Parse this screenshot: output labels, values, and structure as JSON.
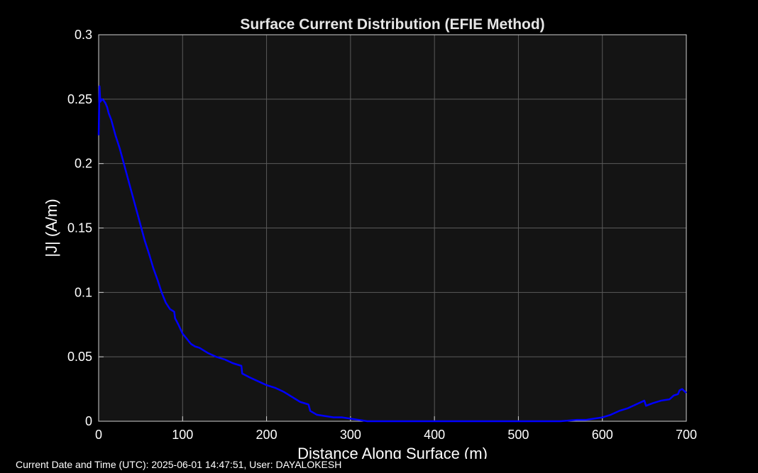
{
  "footer": {
    "text": "Current Date and Time (UTC): 2025-06-01 14:47:51, User: DAYALOKESH"
  },
  "colors": {
    "figure_background": "#000000",
    "axes_background": "#141414",
    "grid": "#5a5a5a",
    "text": "#ffffff",
    "line": "#0000ff"
  },
  "chart_data": {
    "type": "line",
    "title": "Surface Current Distribution (EFIE Method)",
    "xlabel": "Distance Along Surface (m)",
    "ylabel": "|J| (A/m)",
    "xlim": [
      0,
      700
    ],
    "ylim": [
      0,
      0.3
    ],
    "xticks": [
      0,
      100,
      200,
      300,
      400,
      500,
      600,
      700
    ],
    "yticks": [
      0,
      0.05,
      0.1,
      0.15,
      0.2,
      0.25,
      0.3
    ],
    "ytick_labels": [
      "0",
      "0.05",
      "0.1",
      "0.15",
      "0.2",
      "0.25",
      "0.3"
    ],
    "grid": true,
    "series": [
      {
        "color": "#0000ff",
        "x": [
          0,
          1,
          2,
          4,
          6,
          8,
          10,
          12,
          15,
          20,
          25,
          30,
          35,
          40,
          45,
          50,
          55,
          60,
          65,
          70,
          75,
          80,
          85,
          90,
          91,
          95,
          100,
          105,
          110,
          115,
          120,
          125,
          130,
          140,
          150,
          160,
          170,
          171,
          180,
          190,
          200,
          210,
          220,
          230,
          240,
          250,
          252,
          260,
          270,
          280,
          290,
          300,
          310,
          320,
          330,
          340,
          400,
          450,
          500,
          550,
          570,
          580,
          590,
          600,
          610,
          620,
          630,
          640,
          650,
          652,
          660,
          670,
          680,
          685,
          690,
          692,
          695,
          700
        ],
        "y": [
          0.222,
          0.26,
          0.248,
          0.25,
          0.249,
          0.247,
          0.244,
          0.239,
          0.234,
          0.222,
          0.212,
          0.2,
          0.188,
          0.176,
          0.164,
          0.152,
          0.14,
          0.13,
          0.119,
          0.11,
          0.1,
          0.092,
          0.087,
          0.085,
          0.08,
          0.075,
          0.068,
          0.064,
          0.06,
          0.058,
          0.057,
          0.055,
          0.053,
          0.05,
          0.048,
          0.045,
          0.043,
          0.037,
          0.034,
          0.031,
          0.028,
          0.026,
          0.023,
          0.019,
          0.015,
          0.013,
          0.008,
          0.005,
          0.004,
          0.003,
          0.003,
          0.002,
          0.001,
          0.0,
          0.0,
          0.0,
          0.0,
          0.0,
          0.0,
          0.0,
          0.001,
          0.001,
          0.002,
          0.003,
          0.005,
          0.008,
          0.01,
          0.013,
          0.016,
          0.012,
          0.014,
          0.016,
          0.017,
          0.02,
          0.021,
          0.024,
          0.025,
          0.022
        ]
      }
    ]
  }
}
